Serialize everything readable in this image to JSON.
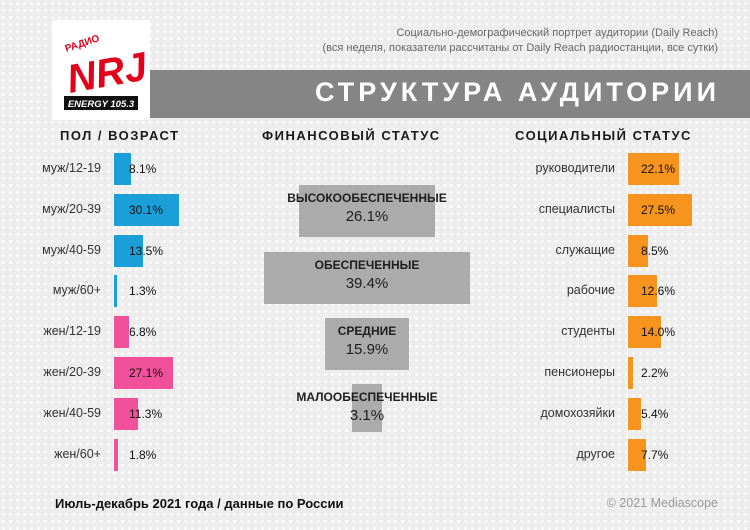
{
  "header": {
    "subtitle_line1": "Социально-демографический портрет аудитории (Daily Reach)",
    "subtitle_line2": "(вся неделя, показатели рассчитаны от Daily Reach радиостанции, все сутки)",
    "banner_title": "СТРУКТУРА АУДИТОРИИ"
  },
  "logo": {
    "top_text": "РАДИО",
    "main_text": "NRJ",
    "bottom_text": "ENERGY 105.3",
    "color": "#e2001a"
  },
  "columns": {
    "left_title": "ПОЛ / ВОЗРАСТ",
    "middle_title": "ФИНАНСОВЫЙ СТАТУС",
    "right_title": "СОЦИАЛЬНЫЙ СТАТУС"
  },
  "colors": {
    "male": "#1a9fd9",
    "female": "#f0519a",
    "social": "#f7941d",
    "financial": "#ababab",
    "banner": "#858585"
  },
  "chart_data": [
    {
      "type": "bar",
      "title": "ПОЛ / ВОЗРАСТ",
      "orientation": "horizontal",
      "categories": [
        "муж/12-19",
        "муж/20-39",
        "муж/40-59",
        "муж/60+",
        "жен/12-19",
        "жен/20-39",
        "жен/40-59",
        "жен/60+"
      ],
      "values": [
        8.1,
        30.1,
        13.5,
        1.3,
        6.8,
        27.1,
        11.3,
        1.8
      ],
      "labels": [
        "8.1%",
        "30.1%",
        "13.5%",
        "1.3%",
        "6.8%",
        "27.1%",
        "11.3%",
        "1.8%"
      ],
      "groups": [
        "male",
        "male",
        "male",
        "male",
        "female",
        "female",
        "female",
        "female"
      ]
    },
    {
      "type": "bar",
      "title": "ФИНАНСОВЫЙ СТАТУС",
      "orientation": "centered",
      "categories": [
        "ВЫСОКООБЕСПЕЧЕННЫЕ",
        "ОБЕСПЕЧЕННЫЕ",
        "СРЕДНИЕ",
        "МАЛООБЕСПЕЧЕННЫЕ"
      ],
      "values": [
        26.1,
        39.4,
        15.9,
        3.1
      ],
      "labels": [
        "26.1%",
        "39.4%",
        "15.9%",
        "3.1%"
      ]
    },
    {
      "type": "bar",
      "title": "СОЦИАЛЬНЫЙ СТАТУС",
      "orientation": "horizontal",
      "categories": [
        "руководители",
        "специалисты",
        "служащие",
        "рабочие",
        "студенты",
        "пенсионеры",
        "домохозяйки",
        "другое"
      ],
      "values": [
        22.1,
        27.5,
        8.5,
        12.6,
        14.0,
        2.2,
        5.4,
        7.7
      ],
      "labels": [
        "22.1%",
        "27.5%",
        "8.5%",
        "12.6%",
        "14.0%",
        "2.2%",
        "5.4%",
        "7.7%"
      ]
    }
  ],
  "footer": {
    "period": "Июль-декабрь 2021 года / данные по России",
    "copyright": "© 2021 Mediascope"
  }
}
